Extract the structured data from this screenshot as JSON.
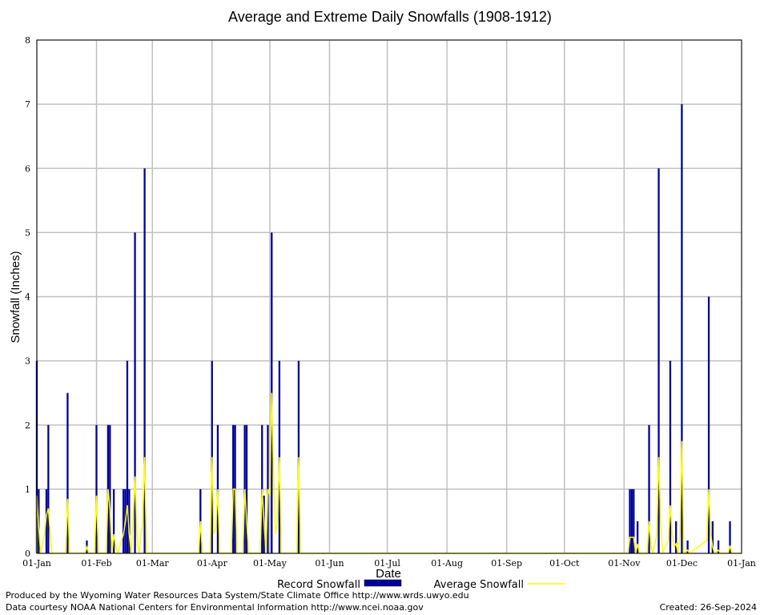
{
  "chart_data": {
    "type": "bar",
    "title": "Average and Extreme Daily Snowfalls (1908-1912)",
    "xlabel": "Date",
    "ylabel": "Snowfall (Inches)",
    "ylim": [
      0,
      8
    ],
    "yticks": [
      "0",
      "1",
      "2",
      "3",
      "4",
      "5",
      "6",
      "7",
      "8"
    ],
    "xlim_days": [
      1,
      366
    ],
    "xticks": [
      {
        "label": "01-Jan",
        "day": 1
      },
      {
        "label": "01-Feb",
        "day": 32
      },
      {
        "label": "01-Mar",
        "day": 61
      },
      {
        "label": "01-Apr",
        "day": 92
      },
      {
        "label": "01-May",
        "day": 122
      },
      {
        "label": "01-Jun",
        "day": 153
      },
      {
        "label": "01-Jul",
        "day": 183
      },
      {
        "label": "01-Aug",
        "day": 214
      },
      {
        "label": "01-Sep",
        "day": 245
      },
      {
        "label": "01-Oct",
        "day": 275
      },
      {
        "label": "01-Nov",
        "day": 306
      },
      {
        "label": "01-Dec",
        "day": 336
      },
      {
        "label": "01-Jan",
        "day": 367
      }
    ],
    "grid": true,
    "legend_position": "bottom",
    "series": [
      {
        "name": "Record Snowfall",
        "color": "#000099",
        "points": [
          {
            "day": 1,
            "value": 3.0
          },
          {
            "day": 2,
            "value": 1.0
          },
          {
            "day": 6,
            "value": 1.0
          },
          {
            "day": 7,
            "value": 2.0
          },
          {
            "day": 17,
            "value": 2.5
          },
          {
            "day": 27,
            "value": 0.2
          },
          {
            "day": 32,
            "value": 2.0
          },
          {
            "day": 38,
            "value": 2.0
          },
          {
            "day": 39,
            "value": 2.0
          },
          {
            "day": 41,
            "value": 1.0
          },
          {
            "day": 46,
            "value": 1.0
          },
          {
            "day": 47,
            "value": 1.0
          },
          {
            "day": 48,
            "value": 3.0
          },
          {
            "day": 49,
            "value": 1.0
          },
          {
            "day": 52,
            "value": 5.0
          },
          {
            "day": 57,
            "value": 6.0
          },
          {
            "day": 86,
            "value": 1.0
          },
          {
            "day": 92,
            "value": 3.0
          },
          {
            "day": 95,
            "value": 2.0
          },
          {
            "day": 103,
            "value": 2.0
          },
          {
            "day": 104,
            "value": 2.0
          },
          {
            "day": 109,
            "value": 2.0
          },
          {
            "day": 110,
            "value": 2.0
          },
          {
            "day": 118,
            "value": 2.0
          },
          {
            "day": 119,
            "value": 0.9
          },
          {
            "day": 121,
            "value": 2.0
          },
          {
            "day": 123,
            "value": 5.0
          },
          {
            "day": 127,
            "value": 3.0
          },
          {
            "day": 137,
            "value": 3.0
          },
          {
            "day": 309,
            "value": 1.0
          },
          {
            "day": 310,
            "value": 1.0
          },
          {
            "day": 311,
            "value": 1.0
          },
          {
            "day": 313,
            "value": 0.5
          },
          {
            "day": 319,
            "value": 2.0
          },
          {
            "day": 324,
            "value": 6.0
          },
          {
            "day": 330,
            "value": 3.0
          },
          {
            "day": 333,
            "value": 0.5
          },
          {
            "day": 336,
            "value": 7.0
          },
          {
            "day": 339,
            "value": 0.2
          },
          {
            "day": 350,
            "value": 4.0
          },
          {
            "day": 352,
            "value": 0.5
          },
          {
            "day": 355,
            "value": 0.2
          },
          {
            "day": 361,
            "value": 0.5
          }
        ]
      },
      {
        "name": "Average Snowfall",
        "color": "#ffff00",
        "points": [
          {
            "day": 1,
            "value": 0.9
          },
          {
            "day": 2,
            "value": 0.4
          },
          {
            "day": 3,
            "value": 0.0
          },
          {
            "day": 5,
            "value": 0.3
          },
          {
            "day": 6,
            "value": 0.6
          },
          {
            "day": 7,
            "value": 0.7
          },
          {
            "day": 8,
            "value": 0.3
          },
          {
            "day": 9,
            "value": 0.0
          },
          {
            "day": 16,
            "value": 0.0
          },
          {
            "day": 17,
            "value": 0.85
          },
          {
            "day": 18,
            "value": 0.0
          },
          {
            "day": 26,
            "value": 0.0
          },
          {
            "day": 27,
            "value": 0.1
          },
          {
            "day": 28,
            "value": 0.0
          },
          {
            "day": 31,
            "value": 0.0
          },
          {
            "day": 32,
            "value": 0.9
          },
          {
            "day": 33,
            "value": 0.0
          },
          {
            "day": 37,
            "value": 0.0
          },
          {
            "day": 38,
            "value": 1.0
          },
          {
            "day": 39,
            "value": 0.7
          },
          {
            "day": 40,
            "value": 0.0
          },
          {
            "day": 41,
            "value": 0.3
          },
          {
            "day": 42,
            "value": 0.1
          },
          {
            "day": 43,
            "value": 0.0
          },
          {
            "day": 45,
            "value": 0.2
          },
          {
            "day": 46,
            "value": 0.3
          },
          {
            "day": 47,
            "value": 0.5
          },
          {
            "day": 48,
            "value": 0.75
          },
          {
            "day": 49,
            "value": 0.3
          },
          {
            "day": 50,
            "value": 0.0
          },
          {
            "day": 51,
            "value": 0.5
          },
          {
            "day": 52,
            "value": 1.2
          },
          {
            "day": 53,
            "value": 0.3
          },
          {
            "day": 54,
            "value": 0.0
          },
          {
            "day": 56,
            "value": 0.5
          },
          {
            "day": 57,
            "value": 1.5
          },
          {
            "day": 58,
            "value": 0.0
          },
          {
            "day": 85,
            "value": 0.0
          },
          {
            "day": 86,
            "value": 0.5
          },
          {
            "day": 87,
            "value": 0.0
          },
          {
            "day": 91,
            "value": 0.0
          },
          {
            "day": 92,
            "value": 1.5
          },
          {
            "day": 93,
            "value": 0.3
          },
          {
            "day": 94,
            "value": 0.4
          },
          {
            "day": 95,
            "value": 1.0
          },
          {
            "day": 96,
            "value": 0.0
          },
          {
            "day": 102,
            "value": 0.0
          },
          {
            "day": 103,
            "value": 1.0
          },
          {
            "day": 104,
            "value": 1.0
          },
          {
            "day": 105,
            "value": 0.0
          },
          {
            "day": 108,
            "value": 0.0
          },
          {
            "day": 109,
            "value": 1.0
          },
          {
            "day": 110,
            "value": 0.5
          },
          {
            "day": 111,
            "value": 0.0
          },
          {
            "day": 117,
            "value": 0.0
          },
          {
            "day": 118,
            "value": 1.0
          },
          {
            "day": 119,
            "value": 0.5
          },
          {
            "day": 120,
            "value": 0.0
          },
          {
            "day": 121,
            "value": 1.0
          },
          {
            "day": 122,
            "value": 0.9
          },
          {
            "day": 123,
            "value": 2.5
          },
          {
            "day": 124,
            "value": 1.2
          },
          {
            "day": 125,
            "value": 0.3
          },
          {
            "day": 126,
            "value": 0.5
          },
          {
            "day": 127,
            "value": 1.5
          },
          {
            "day": 128,
            "value": 0.0
          },
          {
            "day": 136,
            "value": 0.0
          },
          {
            "day": 137,
            "value": 1.5
          },
          {
            "day": 138,
            "value": 0.0
          },
          {
            "day": 308,
            "value": 0.0
          },
          {
            "day": 309,
            "value": 0.25
          },
          {
            "day": 310,
            "value": 0.25
          },
          {
            "day": 311,
            "value": 0.25
          },
          {
            "day": 312,
            "value": 0.0
          },
          {
            "day": 313,
            "value": 0.15
          },
          {
            "day": 314,
            "value": 0.0
          },
          {
            "day": 318,
            "value": 0.0
          },
          {
            "day": 319,
            "value": 0.5
          },
          {
            "day": 320,
            "value": 0.1
          },
          {
            "day": 321,
            "value": 0.0
          },
          {
            "day": 323,
            "value": 0.3
          },
          {
            "day": 324,
            "value": 1.5
          },
          {
            "day": 325,
            "value": 0.5
          },
          {
            "day": 326,
            "value": 0.0
          },
          {
            "day": 329,
            "value": 0.2
          },
          {
            "day": 330,
            "value": 0.75
          },
          {
            "day": 331,
            "value": 0.3
          },
          {
            "day": 332,
            "value": 0.1
          },
          {
            "day": 333,
            "value": 0.15
          },
          {
            "day": 334,
            "value": 0.0
          },
          {
            "day": 335,
            "value": 0.3
          },
          {
            "day": 336,
            "value": 1.75
          },
          {
            "day": 337,
            "value": 0.0
          },
          {
            "day": 339,
            "value": 0.05
          },
          {
            "day": 340,
            "value": 0.0
          },
          {
            "day": 349,
            "value": 0.2
          },
          {
            "day": 350,
            "value": 1.0
          },
          {
            "day": 351,
            "value": 0.3
          },
          {
            "day": 352,
            "value": 0.1
          },
          {
            "day": 353,
            "value": 0.0
          },
          {
            "day": 355,
            "value": 0.05
          },
          {
            "day": 356,
            "value": 0.0
          },
          {
            "day": 360,
            "value": 0.0
          },
          {
            "day": 361,
            "value": 0.12
          },
          {
            "day": 362,
            "value": 0.0
          },
          {
            "day": 366,
            "value": 0.0
          }
        ]
      }
    ]
  },
  "legend": {
    "record_label": "Record Snowfall",
    "average_label": "Average Snowfall"
  },
  "footer": {
    "produced_by": "Produced by the Wyoming Water Resources Data System/State Climate Office http://www.wrds.uwyo.edu",
    "courtesy": "Data courtesy NOAA National Centers for Environmental Information http://www.ncei.noaa.gov",
    "created": "Created:  26-Sep-2024"
  }
}
